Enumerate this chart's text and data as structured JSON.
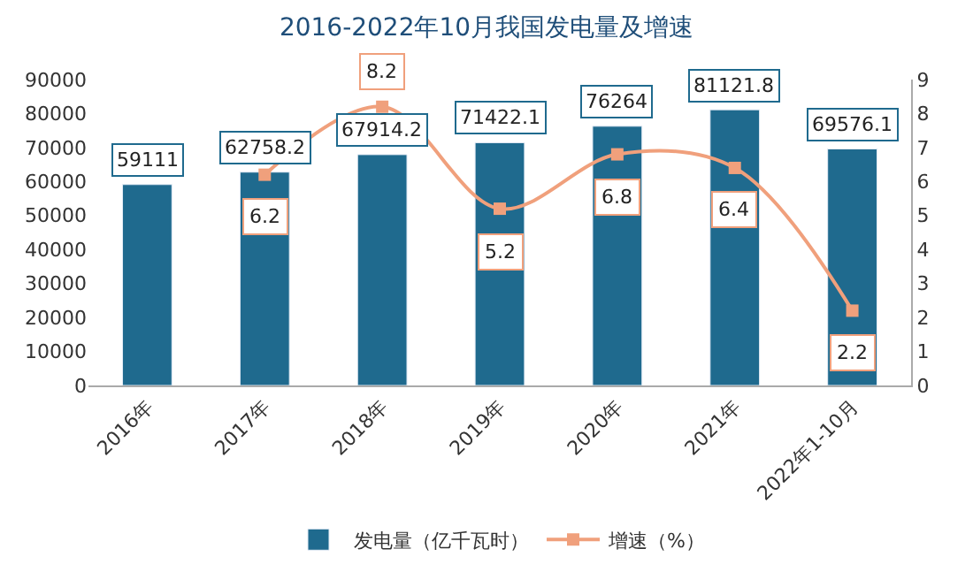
{
  "chart_data": {
    "type": "bar",
    "title": "2016-2022年10月我国发电量及增速",
    "categories": [
      "2016年",
      "2017年",
      "2018年",
      "2019年",
      "2020年",
      "2021年",
      "2022年1-10月"
    ],
    "series": [
      {
        "name": "发电量（亿千瓦时）",
        "color": "#1f6a8e",
        "values": [
          59111,
          62758.2,
          67914.2,
          71422.1,
          76264,
          81121.8,
          69576.1
        ]
      },
      {
        "name": "增速（%）",
        "color": "#f0a07c",
        "type": "line",
        "axis": "y2",
        "marker": "square",
        "values": [
          null,
          6.2,
          8.2,
          5.2,
          6.8,
          6.4,
          2.2
        ]
      }
    ],
    "ylim": [
      0,
      90000
    ],
    "yticks": [
      0,
      10000,
      20000,
      30000,
      40000,
      50000,
      60000,
      70000,
      80000,
      90000
    ],
    "y2lim": [
      0,
      9
    ],
    "y2ticks": [
      0,
      1,
      2,
      3,
      4,
      5,
      6,
      7,
      8,
      9
    ],
    "data_labels": true,
    "legend": "bottom"
  }
}
